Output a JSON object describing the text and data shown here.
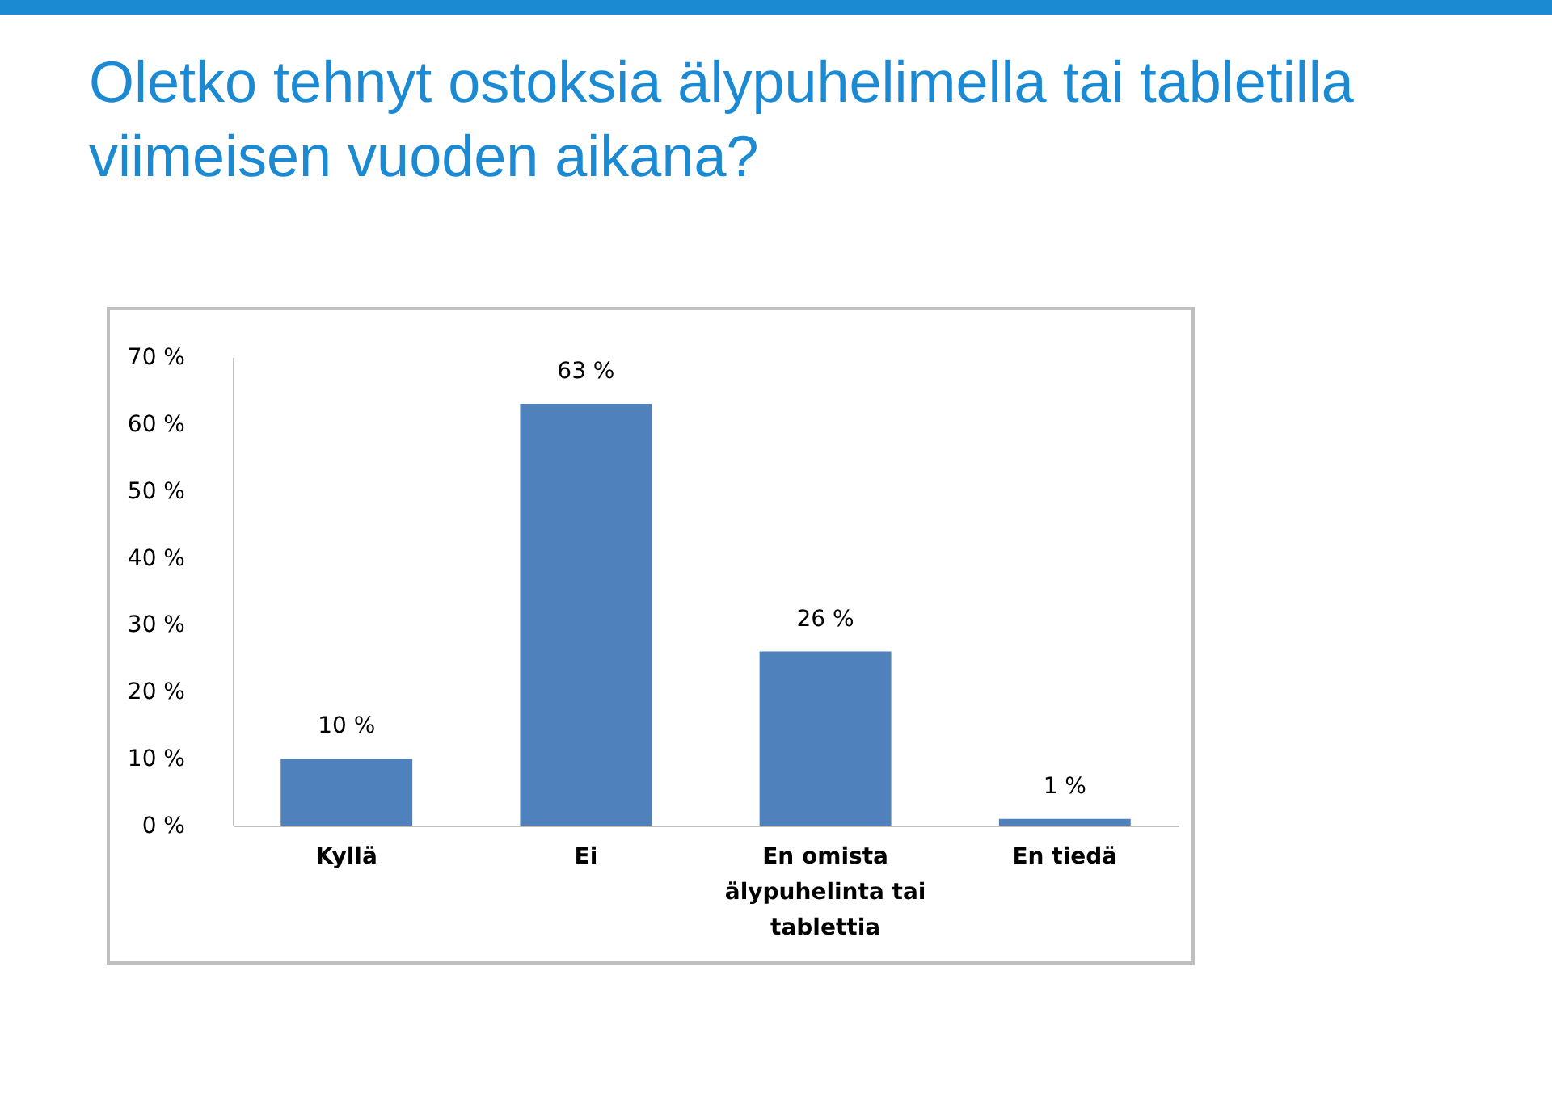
{
  "chart_data": {
    "type": "bar",
    "title": "Oletko tehnyt ostoksia älypuhelimella tai tabletilla viimeisen vuoden aikana?",
    "categories": [
      "Kyllä",
      "Ei",
      "En omista älypuhelinta tai tablettia",
      "En tiedä"
    ],
    "values": [
      10,
      63,
      26,
      1
    ],
    "value_labels": [
      "10 %",
      "63 %",
      "26 %",
      "1 %"
    ],
    "color": "#4f81bd",
    "ylim": [
      0,
      70
    ],
    "yticks": [
      {
        "value": 0,
        "label": "0 %"
      },
      {
        "value": 10,
        "label": "10 %"
      },
      {
        "value": 20,
        "label": "20 %"
      },
      {
        "value": 30,
        "label": "30 %"
      },
      {
        "value": 40,
        "label": "40 %"
      },
      {
        "value": 50,
        "label": "50 %"
      },
      {
        "value": 60,
        "label": "60 %"
      },
      {
        "value": 70,
        "label": "70 %"
      }
    ],
    "grid": false
  }
}
